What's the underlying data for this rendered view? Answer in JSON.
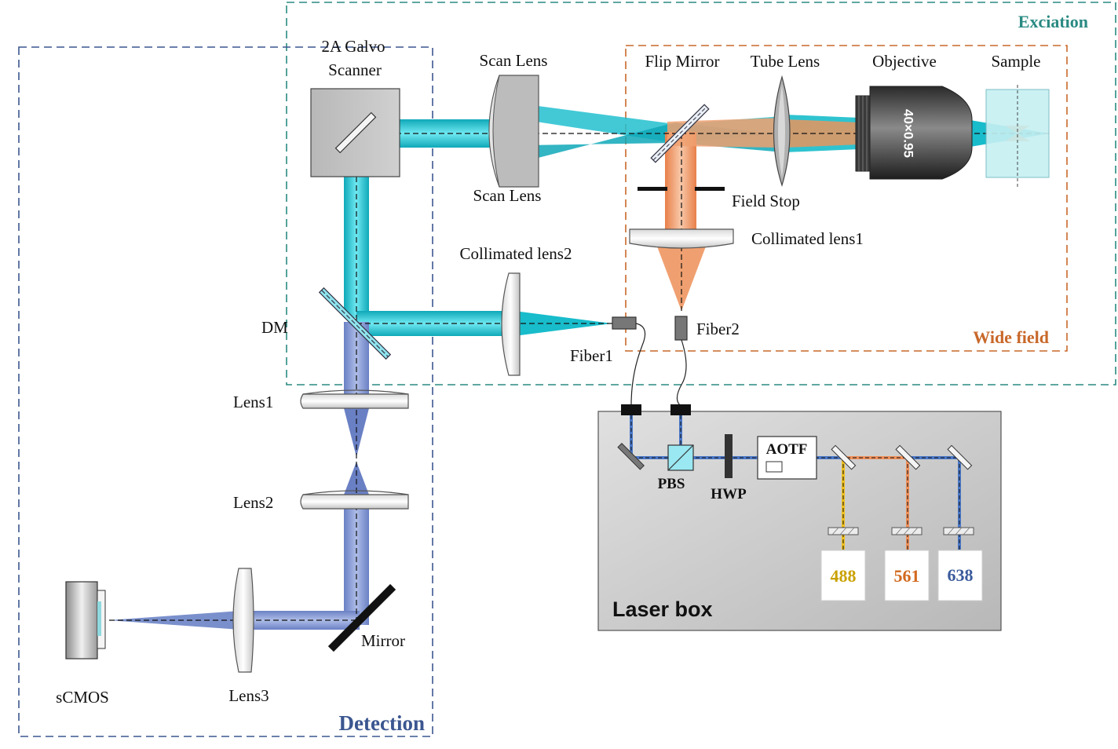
{
  "regions": {
    "excitation": "Exciation",
    "wide_field": "Wide field",
    "detection": "Detection",
    "laser_box": "Laser box"
  },
  "components": {
    "galvo": "2A Galvo",
    "galvo_line2": "Scanner",
    "scan_lens": "Scan Lens",
    "flip_mirror": "Flip Mirror",
    "tube_lens": "Tube Lens",
    "objective": "Objective",
    "objective_spec": "40×0.95",
    "sample": "Sample",
    "field_stop": "Field Stop",
    "collimated_lens1": "Collimated lens1",
    "collimated_lens2": "Collimated lens2",
    "fiber1": "Fiber1",
    "fiber2": "Fiber2",
    "dm": "DM",
    "lens1": "Lens1",
    "lens2": "Lens2",
    "lens3": "Lens3",
    "mirror": "Mirror",
    "scmos": "sCMOS",
    "pbs": "PBS",
    "hwp": "HWP",
    "aotf": "AOTF"
  },
  "lasers": [
    {
      "wavelength": "488",
      "color": "#c9a100"
    },
    {
      "wavelength": "561",
      "color": "#d2691e"
    },
    {
      "wavelength": "638",
      "color": "#3a5a9c"
    }
  ],
  "colors": {
    "excitation_region": "#2a8a82",
    "wide_field_region": "#c8682a",
    "detection_region": "#3b5690",
    "cyan_beam": "#17c3d2",
    "orange_beam": "#f0905a",
    "detection_beam": "#7f94cf"
  }
}
